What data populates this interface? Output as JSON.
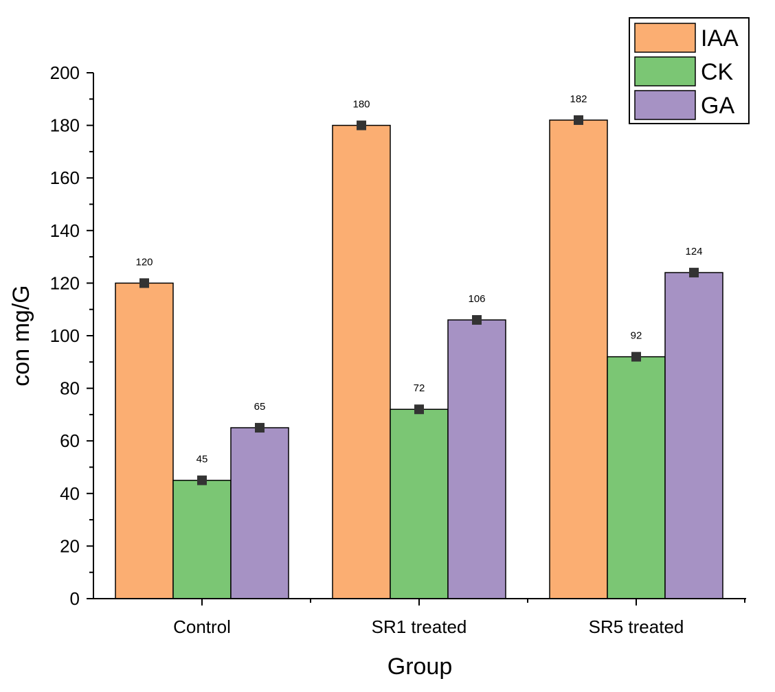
{
  "chart_data": {
    "type": "bar",
    "categories": [
      "Control",
      "SR1 treated",
      "SR5 treated"
    ],
    "series": [
      {
        "name": "IAA",
        "color": "#FBAE72",
        "values": [
          120,
          180,
          182
        ]
      },
      {
        "name": "CK",
        "color": "#7BC674",
        "values": [
          45,
          72,
          92
        ]
      },
      {
        "name": "GA",
        "color": "#A692C4",
        "values": [
          65,
          106,
          124
        ]
      }
    ],
    "xlabel": "Group",
    "ylabel": "con mg/G",
    "ylim": [
      0,
      200
    ],
    "yticks": [
      0,
      20,
      40,
      60,
      80,
      100,
      120,
      140,
      160,
      180,
      200
    ],
    "data_labels": true,
    "error_markers": true,
    "legend_position": "top-right",
    "grid": false
  }
}
